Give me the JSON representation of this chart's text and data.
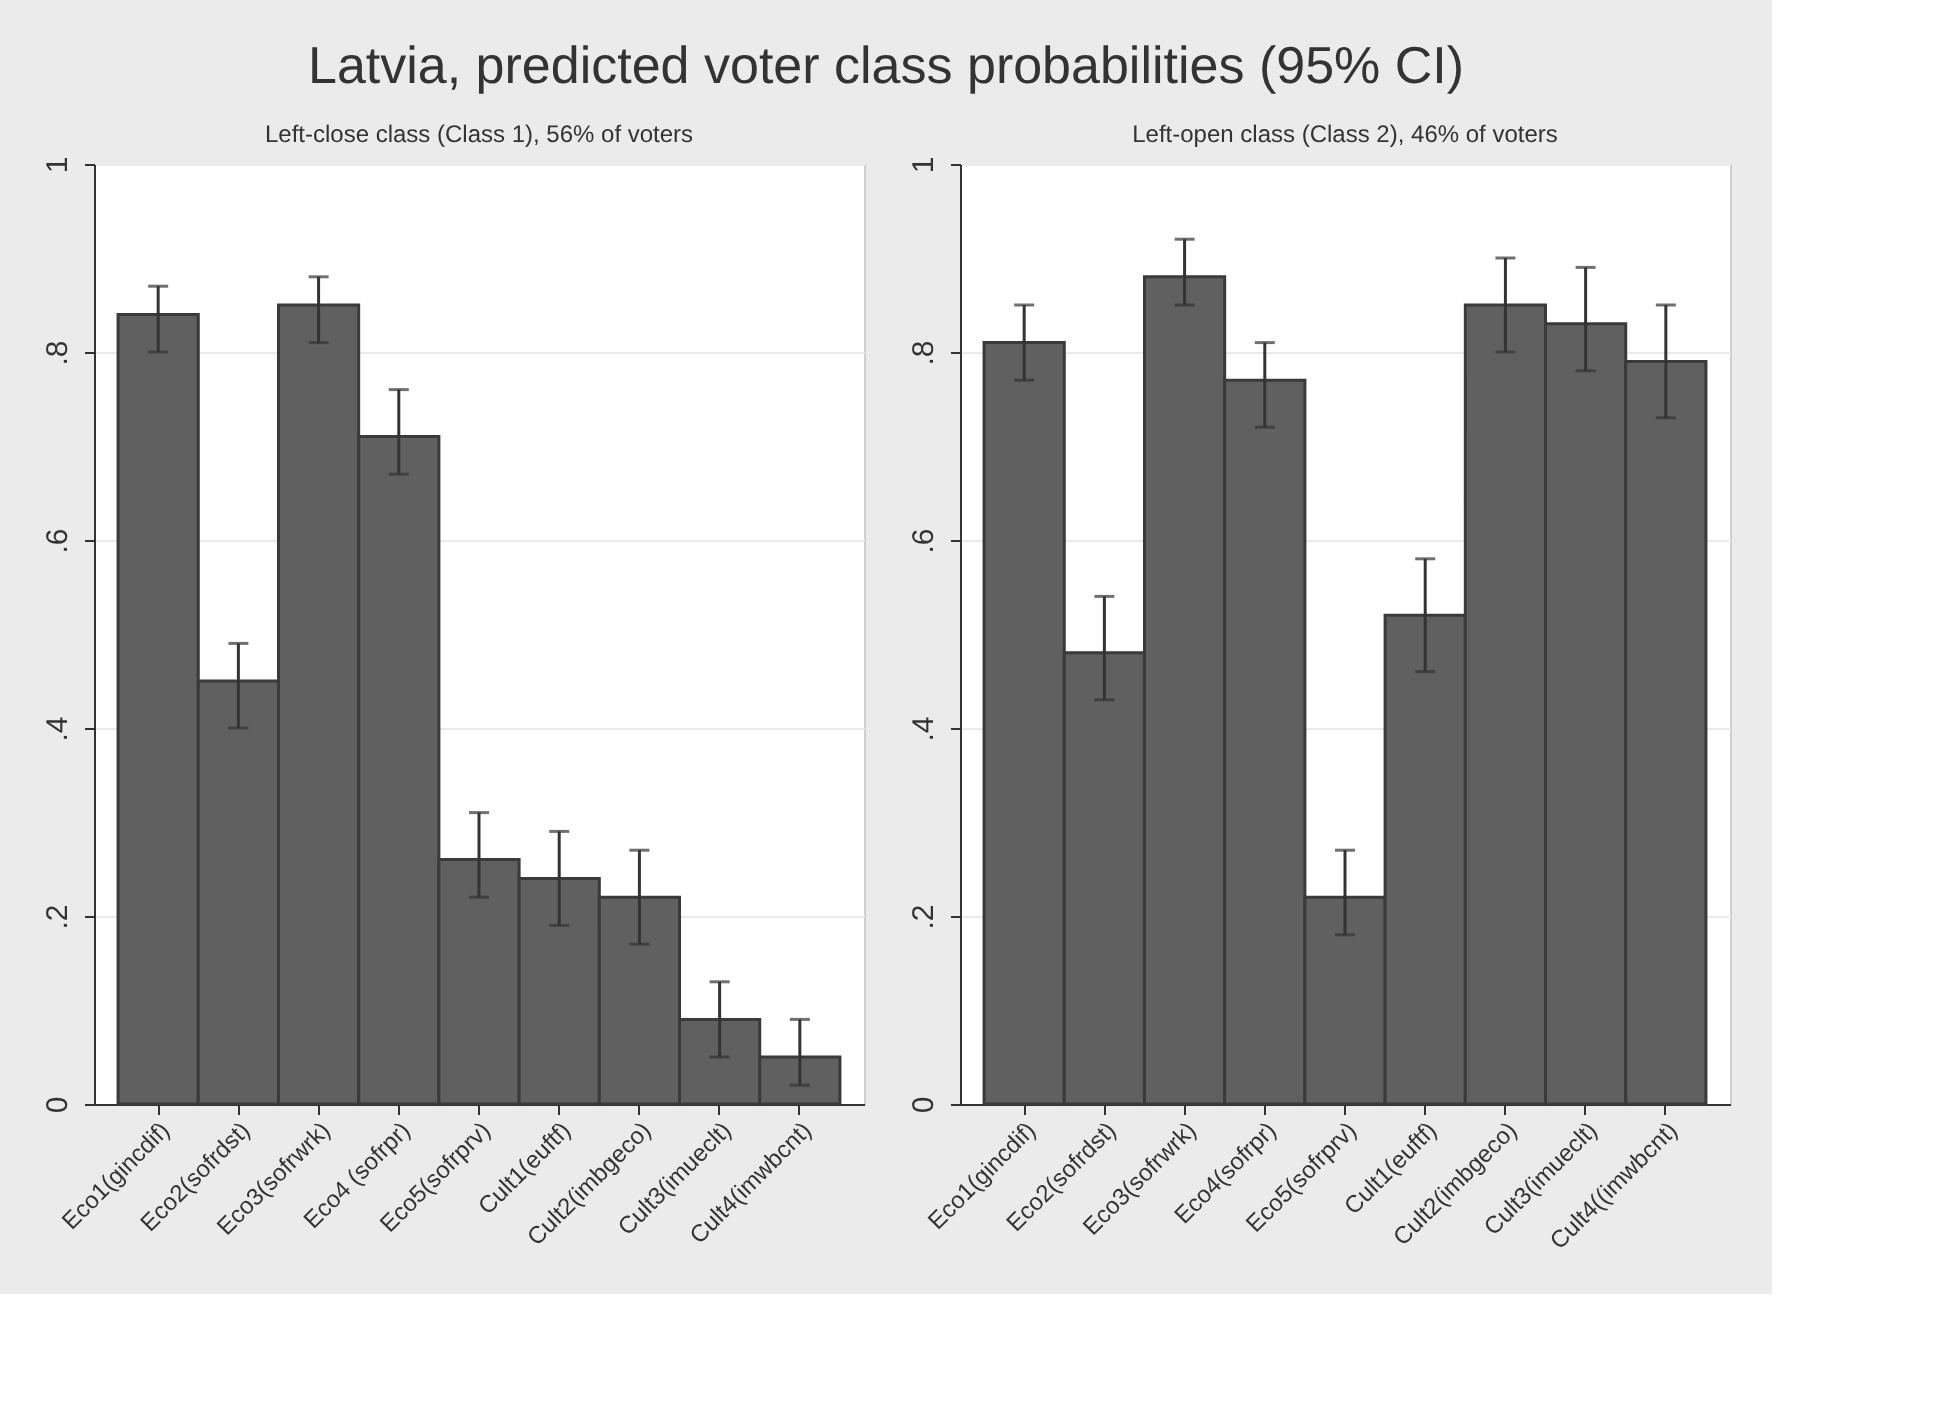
{
  "chart_data": [
    {
      "type": "bar",
      "title": "Latvia, predicted voter class probabilities (95% CI)",
      "subtitle": "Left-close class (Class 1), 56% of voters",
      "categories": [
        "Eco1(gincdif)",
        "Eco2(sofrdst)",
        "Eco3(sofrwrk)",
        "Eco4 (sofrpr)",
        "Eco5(sofrprv)",
        "Cult1(euftf)",
        "Cult2(imbgeco)",
        "Cult3(imueclt)",
        "Cult4(imwbcnt)"
      ],
      "values": [
        0.84,
        0.45,
        0.85,
        0.71,
        0.26,
        0.24,
        0.22,
        0.09,
        0.05
      ],
      "errors": [
        [
          0.8,
          0.87
        ],
        [
          0.4,
          0.49
        ],
        [
          0.81,
          0.88
        ],
        [
          0.67,
          0.76
        ],
        [
          0.22,
          0.31
        ],
        [
          0.19,
          0.29
        ],
        [
          0.17,
          0.27
        ],
        [
          0.05,
          0.13
        ],
        [
          0.02,
          0.09
        ]
      ],
      "color": "#606060",
      "ylim": [
        0,
        1
      ],
      "yticks": [
        0,
        {
          "value": 0.2,
          "label": ".2"
        },
        {
          "value": 0.4,
          "label": ".4"
        },
        {
          "value": 0.6,
          "label": ".6"
        },
        {
          "value": 0.8,
          "label": ".8"
        },
        1
      ],
      "grid": "y"
    },
    {
      "type": "bar",
      "subtitle": "Left-open class (Class 2), 46% of voters",
      "categories": [
        "Eco1(gincdif)",
        "Eco2(sofrdst)",
        "Eco3(sofrwrk)",
        "Eco4(sofrpr)",
        "Eco5(sofrprv)",
        "Cult1(euftf)",
        "Cult2(imbgeco)",
        "Cult3(imueclt)",
        "Cult4((imwbcnt)"
      ],
      "values": [
        0.81,
        0.48,
        0.88,
        0.77,
        0.22,
        0.52,
        0.85,
        0.83,
        0.79
      ],
      "errors": [
        [
          0.77,
          0.85
        ],
        [
          0.43,
          0.54
        ],
        [
          0.85,
          0.92
        ],
        [
          0.72,
          0.81
        ],
        [
          0.18,
          0.27
        ],
        [
          0.46,
          0.58
        ],
        [
          0.8,
          0.9
        ],
        [
          0.78,
          0.89
        ],
        [
          0.73,
          0.85
        ]
      ],
      "color": "#606060",
      "ylim": [
        0,
        1
      ],
      "yticks": [
        0,
        {
          "value": 0.2,
          "label": ".2"
        },
        {
          "value": 0.4,
          "label": ".4"
        },
        {
          "value": 0.6,
          "label": ".6"
        },
        {
          "value": 0.8,
          "label": ".8"
        },
        1
      ],
      "grid": "y"
    }
  ]
}
